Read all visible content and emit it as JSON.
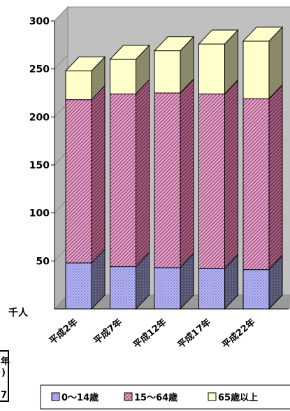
{
  "chart_data": {
    "type": "bar",
    "stacked": true,
    "three_d": true,
    "categories": [
      "平成2年",
      "平成7年",
      "平成12年",
      "平成17年",
      "平成22年"
    ],
    "series": [
      {
        "name": "0〜14歳",
        "values": [
          48,
          44,
          43,
          42,
          41
        ],
        "color": "#b8b8f0",
        "side": "#52526e",
        "pattern": "dots"
      },
      {
        "name": "15〜64歳",
        "values": [
          170,
          180,
          182,
          182,
          178
        ],
        "color": "#e6a6cc",
        "side": "#7a3a55",
        "pattern": "hatch"
      },
      {
        "name": "65歳以上",
        "values": [
          30,
          36,
          44,
          52,
          60
        ],
        "color": "#ffffcc",
        "side": "#8a8a6a",
        "pattern": "solid"
      }
    ],
    "ylim": [
      0,
      300
    ],
    "yticks": [
      "50",
      "100",
      "150",
      "200",
      "250",
      "300"
    ],
    "unit_label": "千人",
    "grid": false,
    "legend_position": "bottom"
  },
  "fragment_text": {
    "line1": "年",
    "line2": ")",
    "line3": "7"
  }
}
